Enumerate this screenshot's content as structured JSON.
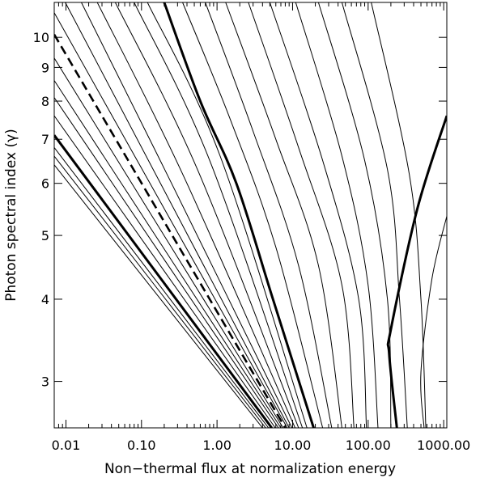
{
  "chart_data": {
    "type": "line",
    "title": "",
    "xlabel": "Non−thermal flux at normalization energy",
    "ylabel": "Photon spectral index (γ)",
    "xscale": "log",
    "yscale": "log",
    "xlim": [
      0.007,
      1100
    ],
    "ylim": [
      2.55,
      11.3
    ],
    "xticks": [
      {
        "value": 0.01,
        "label": "0.01"
      },
      {
        "value": 0.1,
        "label": "0.10"
      },
      {
        "value": 1,
        "label": "1.00"
      },
      {
        "value": 10,
        "label": "10.00"
      },
      {
        "value": 100,
        "label": "100.00"
      },
      {
        "value": 1000,
        "label": "1000.00"
      }
    ],
    "yticks": [
      {
        "value": 3,
        "label": "3"
      },
      {
        "value": 4,
        "label": "4"
      },
      {
        "value": 5,
        "label": "5"
      },
      {
        "value": 6,
        "label": "6"
      },
      {
        "value": 7,
        "label": "7"
      },
      {
        "value": 8,
        "label": "8"
      },
      {
        "value": 9,
        "label": "9"
      },
      {
        "value": 10,
        "label": "10"
      }
    ],
    "grid": false,
    "legend": "none",
    "line_color": "#000000",
    "series": [
      {
        "style": "thin",
        "points": [
          [
            0.007,
            6.4
          ],
          [
            4.0,
            2.55
          ]
        ]
      },
      {
        "style": "thin",
        "points": [
          [
            0.007,
            6.6
          ],
          [
            4.4,
            2.55
          ]
        ]
      },
      {
        "style": "thin",
        "points": [
          [
            0.007,
            6.8
          ],
          [
            4.8,
            2.55
          ]
        ]
      },
      {
        "style": "thick",
        "points": [
          [
            0.007,
            7.1
          ],
          [
            5.3,
            2.55
          ]
        ]
      },
      {
        "style": "thin",
        "points": [
          [
            0.007,
            7.6
          ],
          [
            5.9,
            2.55
          ]
        ]
      },
      {
        "style": "thin",
        "points": [
          [
            0.007,
            8.1
          ],
          [
            6.5,
            2.55
          ]
        ]
      },
      {
        "style": "thin",
        "points": [
          [
            0.007,
            8.6
          ],
          [
            7.0,
            2.55
          ]
        ]
      },
      {
        "style": "thin",
        "points": [
          [
            0.007,
            9.3
          ],
          [
            7.5,
            2.55
          ]
        ]
      },
      {
        "style": "dashed",
        "points": [
          [
            0.007,
            10.1
          ],
          [
            8.0,
            2.55
          ]
        ]
      },
      {
        "style": "thin",
        "points": [
          [
            0.007,
            10.9
          ],
          [
            8.5,
            2.55
          ]
        ]
      },
      {
        "style": "thin",
        "points": [
          [
            0.0098,
            11.3
          ],
          [
            9.0,
            2.55
          ]
        ]
      },
      {
        "style": "thin",
        "points": [
          [
            0.016,
            11.3
          ],
          [
            0.25,
            6.0
          ],
          [
            9.8,
            2.55
          ]
        ]
      },
      {
        "style": "thin",
        "points": [
          [
            0.026,
            11.3
          ],
          [
            0.35,
            6.2
          ],
          [
            10.8,
            2.55
          ]
        ]
      },
      {
        "style": "thin",
        "points": [
          [
            0.045,
            11.3
          ],
          [
            0.55,
            6.3
          ],
          [
            12.0,
            2.55
          ]
        ]
      },
      {
        "style": "thin",
        "points": [
          [
            0.08,
            11.3
          ],
          [
            0.8,
            6.5
          ],
          [
            13.5,
            2.55
          ]
        ]
      },
      {
        "style": "thin",
        "points": [
          [
            0.12,
            11.3
          ],
          [
            1.1,
            6.6
          ],
          [
            15.5,
            2.55
          ]
        ]
      },
      {
        "style": "thick",
        "points": [
          [
            0.2,
            11.3
          ],
          [
            0.6,
            8.0
          ],
          [
            1.8,
            6.0
          ],
          [
            5.5,
            4.0
          ],
          [
            19.0,
            2.55
          ]
        ]
      },
      {
        "style": "thin",
        "points": [
          [
            0.35,
            11.3
          ],
          [
            1.5,
            7.5
          ],
          [
            6.0,
            4.8
          ],
          [
            25.0,
            2.55
          ]
        ]
      },
      {
        "style": "thin",
        "points": [
          [
            0.7,
            11.3
          ],
          [
            3.0,
            7.2
          ],
          [
            12.0,
            4.5
          ],
          [
            33.0,
            2.55
          ]
        ]
      },
      {
        "style": "thin",
        "points": [
          [
            1.3,
            11.3
          ],
          [
            6.0,
            7.0
          ],
          [
            22.0,
            4.5
          ],
          [
            45.0,
            2.55
          ]
        ]
      },
      {
        "style": "thin",
        "points": [
          [
            2.6,
            11.3
          ],
          [
            12.0,
            6.8
          ],
          [
            45.0,
            4.2
          ],
          [
            65.0,
            2.55
          ]
        ]
      },
      {
        "style": "thin",
        "points": [
          [
            5.0,
            11.3
          ],
          [
            25.0,
            6.5
          ],
          [
            75.0,
            4.0
          ],
          [
            95.0,
            2.55
          ]
        ]
      },
      {
        "style": "thin",
        "points": [
          [
            11.0,
            11.3
          ],
          [
            45.0,
            6.6
          ],
          [
            100.0,
            4.2
          ],
          [
            135.0,
            2.55
          ]
        ]
      },
      {
        "style": "thin",
        "points": [
          [
            22.0,
            11.3
          ],
          [
            90.0,
            6.5
          ],
          [
            180.0,
            4.0
          ],
          [
            200.0,
            2.55
          ]
        ]
      },
      {
        "style": "thin",
        "points": [
          [
            45.0,
            11.3
          ],
          [
            180.0,
            6.3
          ],
          [
            260.0,
            4.0
          ],
          [
            330.0,
            2.55
          ]
        ]
      },
      {
        "style": "thin",
        "points": [
          [
            110.0,
            11.3
          ],
          [
            350.0,
            6.2
          ],
          [
            500.0,
            4.0
          ],
          [
            580.0,
            2.55
          ]
        ]
      },
      {
        "style": "thick",
        "points": [
          [
            1100.0,
            7.6
          ],
          [
            450.0,
            5.5
          ],
          [
            200.0,
            3.6
          ],
          [
            190.0,
            3.3
          ],
          [
            240.0,
            2.55
          ]
        ]
      },
      {
        "style": "thin",
        "points": [
          [
            1100.0,
            5.35
          ],
          [
            700.0,
            4.3
          ],
          [
            500.0,
            3.1
          ],
          [
            550.0,
            2.55
          ]
        ]
      }
    ]
  }
}
